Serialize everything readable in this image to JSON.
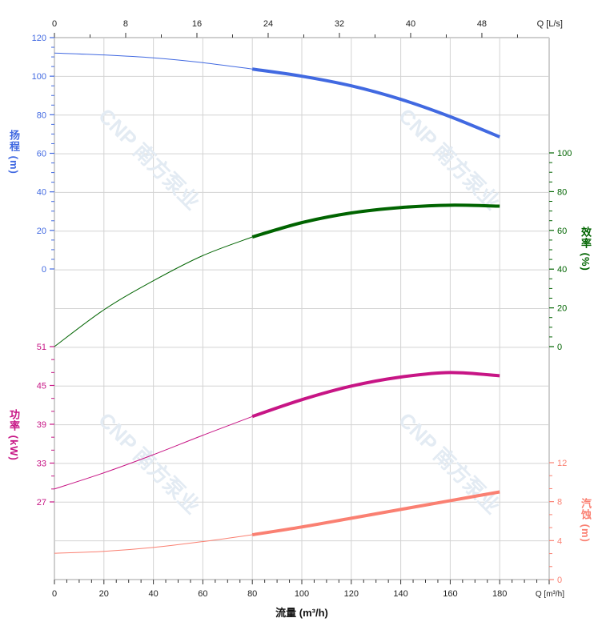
{
  "chart_data": {
    "type": "line",
    "xlabel": "流量 (m³/h)",
    "x_unit_label": "Q [m³/h]",
    "x_top_unit_label": "Q [L/s]",
    "xlim": [
      0,
      200
    ],
    "x_ticks": [
      0,
      20,
      40,
      60,
      80,
      100,
      120,
      140,
      160,
      180
    ],
    "x_top_ticks": [
      0,
      8,
      16,
      24,
      32,
      40,
      48
    ],
    "grid": true,
    "watermark": "CNP 南方泵业",
    "operating_range_start": 80,
    "x": [
      0,
      20,
      40,
      60,
      80,
      100,
      120,
      140,
      160,
      180
    ],
    "series": [
      {
        "key": "head",
        "axis_label": "扬程 (m)",
        "color": "#4169e1",
        "ylim": [
          0,
          120
        ],
        "ticks": [
          0,
          20,
          40,
          60,
          80,
          100,
          120
        ],
        "values": [
          112,
          111,
          109.5,
          107,
          103.7,
          100,
          95,
          88,
          79,
          68.5
        ]
      },
      {
        "key": "efficiency",
        "axis_label": "效率 (%)",
        "color": "#006400",
        "ylim": [
          0,
          100
        ],
        "ticks": [
          0,
          20,
          40,
          60,
          80,
          100
        ],
        "values": [
          0,
          19,
          34,
          47,
          56.6,
          64,
          69,
          71.8,
          73,
          72.5
        ]
      },
      {
        "key": "power",
        "axis_label": "功率 (kW)",
        "color": "#c71585",
        "ylim": [
          27,
          51
        ],
        "ticks": [
          27,
          33,
          39,
          45,
          51
        ],
        "values": [
          29,
          31.5,
          34.3,
          37.3,
          40.2,
          42.8,
          44.9,
          46.3,
          47,
          46.5
        ]
      },
      {
        "key": "npsh",
        "axis_label": "汽蚀 (m)",
        "color": "#fa8072",
        "ylim": [
          0,
          12
        ],
        "ticks": [
          0,
          4,
          8,
          12
        ],
        "values": [
          2.7,
          2.9,
          3.3,
          3.9,
          4.6,
          5.4,
          6.3,
          7.2,
          8.1,
          9.0
        ]
      }
    ]
  }
}
